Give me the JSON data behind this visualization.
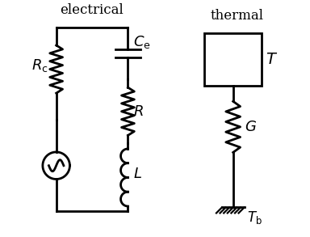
{
  "title_electrical": "electrical",
  "title_thermal": "thermal",
  "label_Ce": "$C_\\mathrm{e}$",
  "label_R": "$R$",
  "label_Rc": "$R_\\mathrm{c}$",
  "label_L": "$L$",
  "label_T": "$T$",
  "label_G": "$G$",
  "label_Tb": "$T_\\mathrm{b}$",
  "bg_color": "#ffffff",
  "line_color": "#000000",
  "lw": 2.0,
  "font_size": 12
}
